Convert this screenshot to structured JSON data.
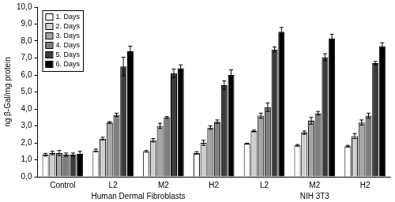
{
  "chart_data": {
    "type": "bar",
    "y_label": "ng β-Gal/mg protein",
    "categories": [
      "Control",
      "L2",
      "M2",
      "H2",
      "L2",
      "M2",
      "H2"
    ],
    "annotations": [
      {
        "text": "Human Dermal Fibroblasts",
        "from": 0,
        "to": 3
      },
      {
        "text": "NIH 3T3",
        "from": 4,
        "to": 6
      }
    ],
    "series": [
      {
        "name": "1. Days",
        "color": "#ffffff",
        "values": [
          1.3,
          1.55,
          1.5,
          1.4,
          1.95,
          1.85,
          1.8
        ],
        "errors": [
          0.08,
          0.08,
          0.05,
          0.08,
          0.03,
          0.05,
          0.05
        ]
      },
      {
        "name": "2. Days",
        "color": "#d0d0d0",
        "values": [
          1.4,
          2.25,
          2.15,
          2.0,
          2.7,
          2.6,
          2.4
        ],
        "errors": [
          0.1,
          0.08,
          0.1,
          0.15,
          0.05,
          0.1,
          0.15
        ]
      },
      {
        "name": "3. Days",
        "color": "#a6a6a6",
        "values": [
          1.4,
          3.2,
          3.0,
          2.9,
          3.6,
          3.3,
          3.2
        ],
        "errors": [
          0.15,
          0.05,
          0.15,
          0.1,
          0.15,
          0.2,
          0.15
        ]
      },
      {
        "name": "4. Days",
        "color": "#7f7f7f",
        "values": [
          1.3,
          3.65,
          3.5,
          3.25,
          4.1,
          3.75,
          3.6
        ],
        "errors": [
          0.1,
          0.1,
          0.05,
          0.1,
          0.25,
          0.1,
          0.15
        ]
      },
      {
        "name": "5. Days",
        "color": "#3c3c3c",
        "values": [
          1.3,
          6.5,
          6.1,
          5.4,
          7.5,
          7.05,
          6.7
        ],
        "errors": [
          0.1,
          0.55,
          0.25,
          0.25,
          0.15,
          0.2,
          0.1
        ]
      },
      {
        "name": "6. Days",
        "color": "#000000",
        "values": [
          1.35,
          7.4,
          6.4,
          6.0,
          8.55,
          8.15,
          7.7
        ],
        "errors": [
          0.15,
          0.3,
          0.2,
          0.3,
          0.25,
          0.25,
          0.2
        ]
      }
    ],
    "ylim": [
      0,
      10
    ],
    "yticks": [
      {
        "value": 0,
        "label": "0,0"
      },
      {
        "value": 1,
        "label": "1,0"
      },
      {
        "value": 2,
        "label": "2,0"
      },
      {
        "value": 3,
        "label": "3,0"
      },
      {
        "value": 4,
        "label": "4,0"
      },
      {
        "value": 5,
        "label": "5,0"
      },
      {
        "value": 6,
        "label": "6,0"
      },
      {
        "value": 7,
        "label": "7,0"
      },
      {
        "value": 8,
        "label": "8,0"
      },
      {
        "value": 9,
        "label": "9,0"
      },
      {
        "value": 10,
        "label": "10,0"
      }
    ],
    "grid": false,
    "legend": "upper left"
  }
}
